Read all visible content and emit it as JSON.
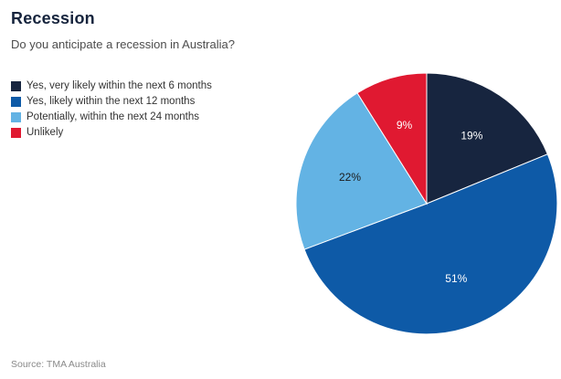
{
  "header": {
    "title": "Recession",
    "subtitle": "Do you anticipate a recession in Australia?"
  },
  "chart_data": {
    "type": "pie",
    "title": "Recession",
    "question": "Do you anticipate a recession in Australia?",
    "start_angle_deg": -90,
    "direction": "clockwise",
    "legend_position": "top-left",
    "value_suffix": "%",
    "slices": [
      {
        "label": "Yes, very likely within the next 6 months",
        "value": 19,
        "color": "#17253f",
        "label_color": "#ffffff"
      },
      {
        "label": "Yes, likely within the next 12 months",
        "value": 51,
        "color": "#0e5aa7",
        "label_color": "#ffffff"
      },
      {
        "label": "Potentially, within the next 24 months",
        "value": 22,
        "color": "#63b3e4",
        "label_color": "#1a1a1a"
      },
      {
        "label": "Unlikely",
        "value": 9,
        "color": "#e01931",
        "label_color": "#ffffff"
      }
    ]
  },
  "footer": {
    "source": "Source: TMA Australia"
  }
}
